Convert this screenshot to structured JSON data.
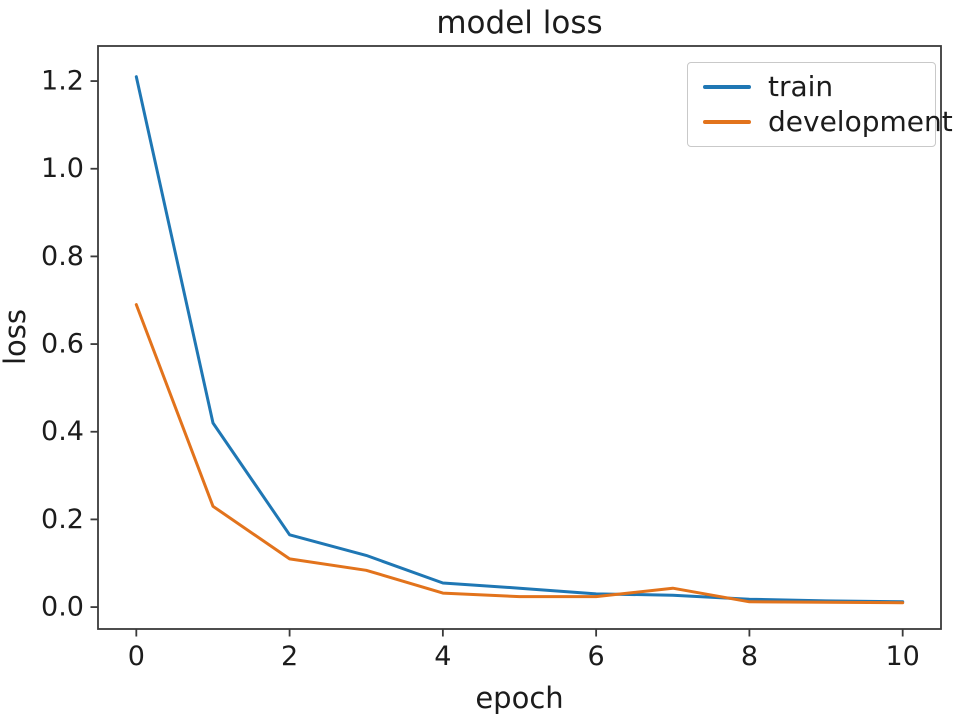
{
  "chart_data": {
    "type": "line",
    "title": "model loss",
    "xlabel": "epoch",
    "ylabel": "loss",
    "x": [
      0,
      1,
      2,
      3,
      4,
      5,
      6,
      7,
      8,
      9,
      10
    ],
    "series": [
      {
        "name": "train",
        "color": "#1f77b4",
        "values": [
          1.21,
          0.42,
          0.165,
          0.118,
          0.055,
          0.043,
          0.03,
          0.027,
          0.018,
          0.014,
          0.012
        ]
      },
      {
        "name": "development",
        "color": "#e2731c",
        "values": [
          0.69,
          0.23,
          0.11,
          0.084,
          0.032,
          0.024,
          0.024,
          0.043,
          0.012,
          0.011,
          0.01
        ]
      }
    ],
    "xlim": [
      -0.5,
      10.5
    ],
    "ylim": [
      -0.05,
      1.28
    ],
    "x_ticks": {
      "values": [
        0,
        2,
        4,
        6,
        8,
        10
      ],
      "labels": [
        "0",
        "2",
        "4",
        "6",
        "8",
        "10"
      ]
    },
    "y_ticks": {
      "values": [
        0.0,
        0.2,
        0.4,
        0.6,
        0.8,
        1.0,
        1.2
      ],
      "labels": [
        "0.0",
        "0.2",
        "0.4",
        "0.6",
        "0.8",
        "1.0",
        "1.2"
      ]
    },
    "grid": false,
    "legend_position": "upper right",
    "legend": [
      "train",
      "development"
    ]
  },
  "style": {
    "axis_color": "#3a3a3a",
    "text_color": "#1c1c1c",
    "legend_border_color": "#c9c9c9",
    "background": "#ffffff"
  }
}
